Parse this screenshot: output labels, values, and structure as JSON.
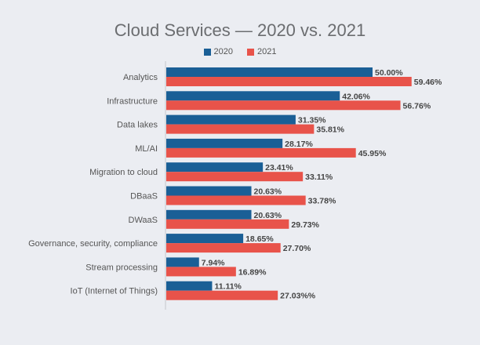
{
  "chart_data": {
    "type": "bar",
    "orientation": "horizontal",
    "title": "Cloud Services — 2020 vs. 2021",
    "xlabel": "",
    "ylabel": "",
    "xlim": [
      0,
      70
    ],
    "grid": false,
    "legend_position": "top-center",
    "categories": [
      "Analytics",
      "Infrastructure",
      "Data lakes",
      "ML/AI",
      "Migration to cloud",
      "DBaaS",
      "DWaaS",
      "Governance, security, compliance",
      "Stream processing",
      "IoT (Internet of Things)"
    ],
    "series": [
      {
        "name": "2020",
        "color": "#1a5f96",
        "values": [
          50.0,
          42.06,
          31.35,
          28.17,
          23.41,
          20.63,
          20.63,
          18.65,
          7.94,
          11.11
        ],
        "labels": [
          "50.00%",
          "42.06%",
          "31.35%",
          "28.17%",
          "23.41%",
          "20.63%",
          "20.63%",
          "18.65%",
          "7.94%",
          "11.11%"
        ]
      },
      {
        "name": "2021",
        "color": "#e8534a",
        "values": [
          59.46,
          56.76,
          35.81,
          45.95,
          33.11,
          33.78,
          29.73,
          27.7,
          16.89,
          27.03
        ],
        "labels": [
          "59.46%",
          "56.76%",
          "35.81%",
          "45.95%",
          "33.11%",
          "33.78%",
          "29.73%",
          "27.70%",
          "16.89%",
          "27.03%%"
        ]
      }
    ]
  }
}
